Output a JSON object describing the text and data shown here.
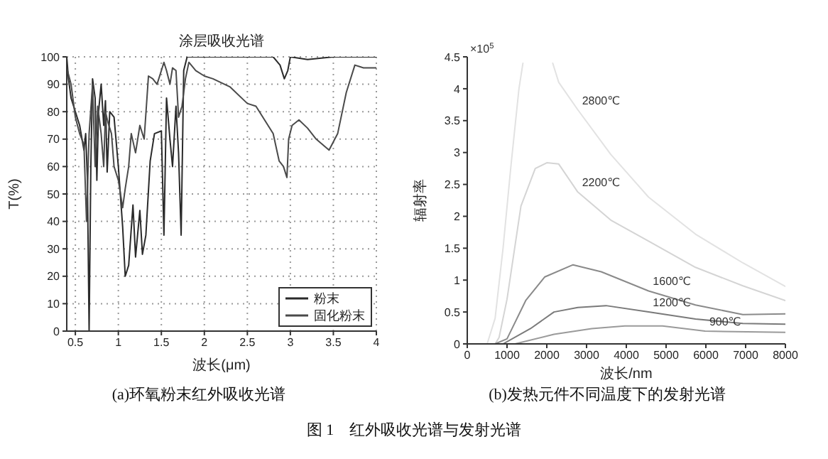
{
  "chart_data": [
    {
      "type": "line",
      "title": "涂层吸收光谱",
      "xlabel": "波长(μm)",
      "ylabel": "T(%)",
      "xlim": [
        0.4,
        4
      ],
      "xticks": [
        0.5,
        1,
        1.5,
        2,
        2.5,
        3,
        3.5,
        4
      ],
      "ylim": [
        0,
        100
      ],
      "yticks": [
        0,
        10,
        20,
        30,
        40,
        50,
        60,
        70,
        80,
        90,
        100
      ],
      "grid": true,
      "legend": "bottom right",
      "line_style": "solid",
      "marker": "none",
      "annotations": [
        "(a)环氧粉末红外吸收光谱",
        "图 1　红外吸收光谱与发射光谱"
      ],
      "series": [
        {
          "name": "粉末",
          "color": "#2a2a2a",
          "x": [
            0.4,
            0.42,
            0.45,
            0.5,
            0.55,
            0.6,
            0.62,
            0.64,
            0.66,
            0.68,
            0.7,
            0.73,
            0.75,
            0.77,
            0.8,
            0.83,
            0.85,
            0.87,
            0.9,
            0.95,
            1.0,
            1.05,
            1.08,
            1.12,
            1.17,
            1.2,
            1.25,
            1.28,
            1.32,
            1.37,
            1.42,
            1.5,
            1.53,
            1.56,
            1.6,
            1.63,
            1.67,
            1.7,
            1.73,
            1.76,
            1.8,
            2.0,
            2.5,
            2.8,
            2.88,
            2.93,
            2.97,
            3.0,
            3.2,
            3.5,
            4.0
          ],
          "values": [
            100,
            92,
            85,
            80,
            75,
            66,
            72,
            56,
            0,
            60,
            92,
            85,
            55,
            80,
            90,
            75,
            84,
            58,
            80,
            78,
            60,
            38,
            20,
            24,
            46,
            27,
            44,
            28,
            35,
            62,
            72,
            73,
            35,
            85,
            70,
            60,
            82,
            65,
            35,
            95,
            100,
            100,
            100,
            100,
            97,
            92,
            95,
            100,
            99,
            100,
            100
          ]
        },
        {
          "name": "固化粉末",
          "color": "#4a4a4a",
          "x": [
            0.4,
            0.45,
            0.5,
            0.55,
            0.6,
            0.63,
            0.66,
            0.7,
            0.73,
            0.76,
            0.8,
            0.83,
            0.85,
            0.88,
            0.92,
            0.95,
            1.0,
            1.05,
            1.08,
            1.12,
            1.15,
            1.2,
            1.25,
            1.3,
            1.35,
            1.4,
            1.45,
            1.53,
            1.56,
            1.6,
            1.63,
            1.67,
            1.7,
            1.74,
            1.78,
            1.82,
            1.9,
            2.0,
            2.1,
            2.3,
            2.5,
            2.6,
            2.7,
            2.8,
            2.87,
            2.92,
            2.96,
            2.98,
            3.02,
            3.1,
            3.2,
            3.3,
            3.45,
            3.55,
            3.65,
            3.75,
            3.85,
            4.0
          ],
          "values": [
            96,
            90,
            78,
            72,
            68,
            40,
            72,
            90,
            60,
            82,
            72,
            60,
            80,
            76,
            72,
            60,
            55,
            45,
            52,
            60,
            72,
            65,
            75,
            70,
            93,
            92,
            90,
            98,
            95,
            90,
            96,
            95,
            78,
            82,
            92,
            98,
            95,
            93,
            92,
            89,
            83,
            82,
            77,
            72,
            62,
            60,
            56,
            70,
            75,
            77,
            74,
            70,
            66,
            72,
            87,
            97,
            96,
            96
          ]
        }
      ]
    },
    {
      "type": "line",
      "xlabel": "波长/nm",
      "ylabel": "辐射率",
      "xlim": [
        0,
        8000
      ],
      "xticks": [
        0,
        1000,
        2000,
        3000,
        4000,
        5000,
        6000,
        7000,
        8000
      ],
      "ylim": [
        0,
        4.5
      ],
      "yticks": [
        0,
        0.5,
        1,
        1.5,
        2,
        2.5,
        3,
        3.5,
        4,
        4.5
      ],
      "grid": false,
      "line_style": "solid",
      "marker": "none",
      "annotations": [
        "(b)发热元件不同温度下的发射光谱",
        "×10$^{5}$"
      ],
      "series": [
        {
          "name": "2800℃",
          "color": "#e2e2e2",
          "x": [
            0,
            500,
            700,
            900,
            1100,
            1300,
            1400,
            1600,
            1900,
            2150,
            2300,
            2780,
            3610,
            4560,
            5740,
            6930,
            8000
          ],
          "values": [
            0,
            0,
            0.4,
            1.5,
            2.8,
            4.0,
            4.4,
            null,
            null,
            4.4,
            4.1,
            3.67,
            2.97,
            2.3,
            1.72,
            1.27,
            0.9
          ]
        },
        {
          "name": "2200℃",
          "color": "#d4d4d4",
          "x": [
            0,
            700,
            800,
            1000,
            1350,
            1710,
            2000,
            2300,
            2780,
            3610,
            4560,
            5740,
            6930,
            8000
          ],
          "values": [
            0,
            0,
            0.1,
            0.7,
            2.16,
            2.75,
            2.84,
            2.82,
            2.38,
            1.94,
            1.61,
            1.2,
            0.91,
            0.68
          ]
        },
        {
          "name": "1600℃",
          "color": "#8a8a8a",
          "x": [
            0,
            700,
            1000,
            1470,
            1950,
            2660,
            3370,
            4560,
            5740,
            6930,
            8000
          ],
          "values": [
            0,
            0,
            0.08,
            0.68,
            1.05,
            1.24,
            1.13,
            0.83,
            0.61,
            0.46,
            0.47
          ]
        },
        {
          "name": "1200℃",
          "color": "#7a7a7a",
          "x": [
            0,
            900,
            1590,
            2180,
            2780,
            3490,
            4560,
            5740,
            6930,
            8000
          ],
          "values": [
            0,
            0,
            0.24,
            0.5,
            0.57,
            0.6,
            0.5,
            0.39,
            0.32,
            0.31
          ]
        },
        {
          "name": "900℃",
          "color": "#9a9a9a",
          "x": [
            0,
            1200,
            2180,
            3130,
            3960,
            4910,
            5980,
            8000
          ],
          "values": [
            0,
            0,
            0.15,
            0.24,
            0.28,
            0.28,
            0.2,
            0.18
          ]
        }
      ]
    }
  ]
}
